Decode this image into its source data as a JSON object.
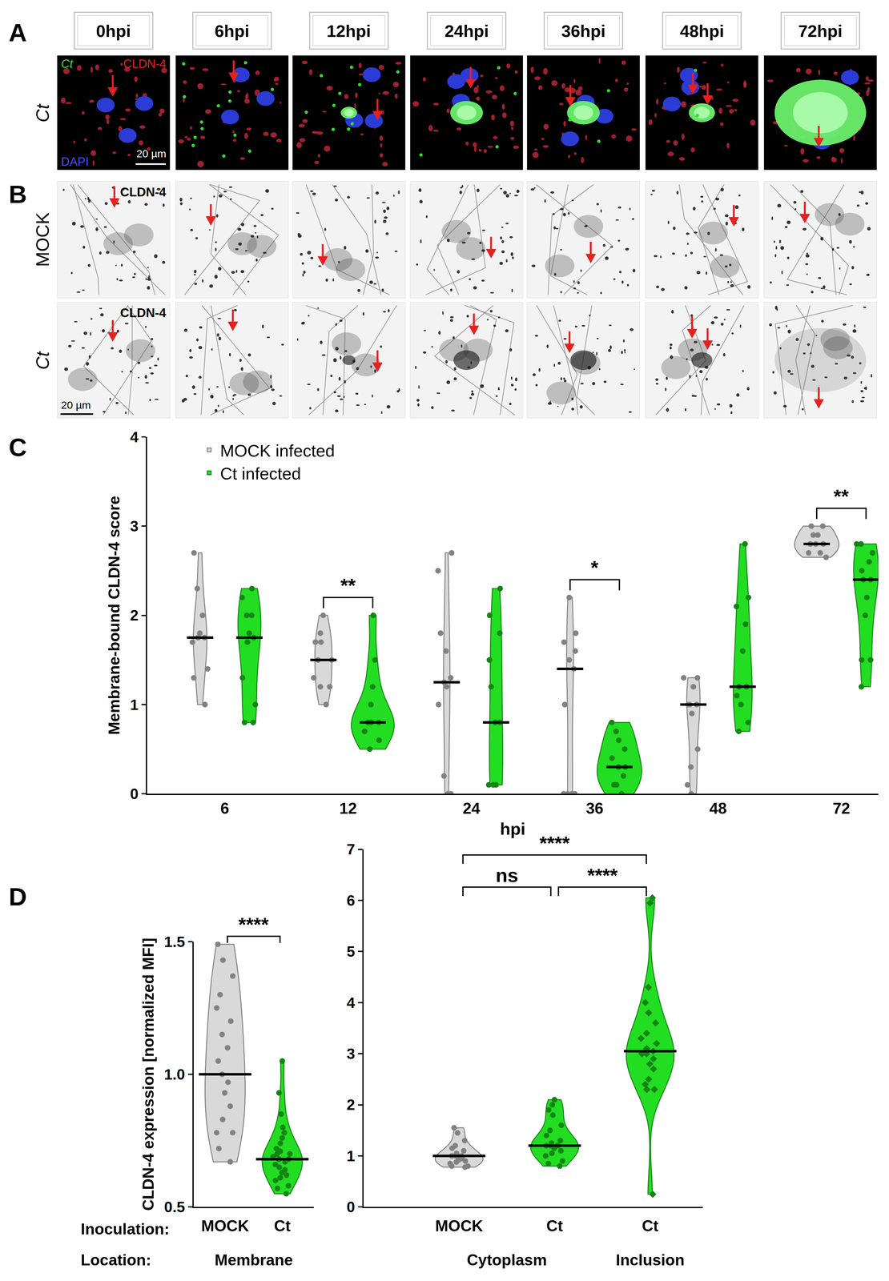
{
  "panel_labels": [
    "A",
    "B",
    "C",
    "D"
  ],
  "images": {
    "time_points": [
      "0hpi",
      "6hpi",
      "12hpi",
      "24hpi",
      "36hpi",
      "48hpi",
      "72hpi"
    ],
    "rows": [
      {
        "label": "Ct",
        "stains": [
          {
            "text": "Ct",
            "color": "#33dd33"
          },
          {
            "text": "CLDN-4",
            "color": "#e02020"
          },
          {
            "text": "DAPI",
            "color": "#4a4aff"
          }
        ],
        "scale_bar": "20 µm"
      },
      {
        "label": "MOCK",
        "stains": [
          {
            "text": "CLDN-4",
            "color": "#000000"
          }
        ]
      },
      {
        "label": "Ct",
        "stains": [
          {
            "text": "CLDN-4",
            "color": "#000000"
          }
        ],
        "scale_bar": "20 µm"
      }
    ]
  },
  "chart_data": [
    {
      "type": "violin",
      "ylabel": "Membrane-bound CLDN-4 score",
      "xlabel": "hpi",
      "categories": [
        "6",
        "12",
        "24",
        "36",
        "48",
        "72"
      ],
      "ylim": [
        0,
        4
      ],
      "yticks": [
        0,
        1,
        2,
        3,
        4
      ],
      "grid": false,
      "legend": "upper left",
      "series": [
        {
          "name": "MOCK infected",
          "color": "#d9d9d9",
          "marker": "circle",
          "values": [
            [
              2.7,
              2.3,
              2.0,
              1.8,
              1.75,
              1.75,
              1.7,
              1.4,
              1.3,
              1.0
            ],
            [
              2.0,
              1.8,
              1.7,
              1.7,
              1.5,
              1.5,
              1.3,
              1.2,
              1.2,
              1.0
            ],
            [
              2.7,
              2.5,
              1.8,
              1.6,
              1.3,
              1.25,
              1.2,
              1.0,
              0.2,
              0,
              0
            ],
            [
              2.2,
              1.8,
              1.7,
              1.6,
              1.5,
              1.4,
              1.0,
              0,
              0,
              0,
              0
            ],
            [
              1.3,
              1.3,
              1.2,
              1.0,
              1.0,
              1.0,
              0.9,
              0.5,
              0.3,
              0.1,
              0
            ],
            [
              3.0,
              3.0,
              2.9,
              2.9,
              2.8,
              2.8,
              2.8,
              2.7,
              2.7,
              2.65
            ]
          ],
          "medians": [
            1.75,
            1.5,
            1.25,
            1.4,
            1.0,
            2.8
          ]
        },
        {
          "name": "Ct infected",
          "color": "#22dd22",
          "marker": "circle",
          "values": [
            [
              2.3,
              2.2,
              2.0,
              2.0,
              1.8,
              1.75,
              1.7,
              1.3,
              1.0,
              0.8,
              0.8
            ],
            [
              2.0,
              1.5,
              1.2,
              1.0,
              0.8,
              0.8,
              0.8,
              0.8,
              0.7,
              0.6,
              0.5
            ],
            [
              2.3,
              2.0,
              1.8,
              1.5,
              1.2,
              0.8,
              0.8,
              0.1,
              0.1,
              0.1,
              0.1
            ],
            [
              0.8,
              0.7,
              0.6,
              0.5,
              0.4,
              0.3,
              0.3,
              0.2,
              0.1,
              0.1,
              0
            ],
            [
              2.8,
              2.2,
              2.1,
              1.9,
              1.6,
              1.2,
              1.2,
              1.1,
              1.0,
              0.8,
              0.7
            ],
            [
              2.8,
              2.8,
              2.7,
              2.6,
              2.5,
              2.4,
              2.4,
              2.2,
              2.0,
              1.5,
              1.5,
              1.2
            ]
          ],
          "medians": [
            1.75,
            0.8,
            0.8,
            0.3,
            1.2,
            2.4
          ]
        }
      ],
      "comparisons": [
        {
          "category": "12",
          "label": "**"
        },
        {
          "category": "36",
          "label": "*"
        },
        {
          "category": "72",
          "label": "**"
        }
      ]
    },
    {
      "type": "violin",
      "ylabel": "CLDN-4 expression [normalized MFI]",
      "row_labels": [
        "Inoculation:",
        "Location:"
      ],
      "ylim": [
        0.5,
        1.5
      ],
      "yticks": [
        0.5,
        {
          "value": 1,
          "label": "1.0"
        },
        1.5
      ],
      "grid": false,
      "groups": [
        {
          "inoculation": "MOCK",
          "location": "Membrane",
          "color": "#d9d9d9",
          "marker": "circle",
          "median": 1.0,
          "values": [
            1.49,
            1.43,
            1.37,
            1.3,
            1.25,
            1.2,
            1.15,
            1.1,
            1.05,
            1.0,
            0.97,
            0.93,
            0.88,
            0.83,
            0.78,
            0.78,
            0.72,
            0.67
          ]
        },
        {
          "inoculation": "Ct",
          "location": "Membrane",
          "color": "#22dd22",
          "marker": "circle",
          "median": 0.68,
          "values": [
            1.05,
            0.93,
            0.85,
            0.8,
            0.78,
            0.76,
            0.74,
            0.72,
            0.71,
            0.7,
            0.7,
            0.69,
            0.68,
            0.68,
            0.67,
            0.66,
            0.65,
            0.64,
            0.63,
            0.62,
            0.61,
            0.6,
            0.58,
            0.57,
            0.55
          ]
        }
      ],
      "comparisons": [
        {
          "groups": [
            0,
            1
          ],
          "label": "****"
        }
      ]
    },
    {
      "type": "violin",
      "ylim": [
        0,
        7
      ],
      "yticks": [
        0,
        1,
        2,
        3,
        4,
        5,
        6,
        7
      ],
      "grid": false,
      "groups": [
        {
          "inoculation": "MOCK",
          "location": "Cytoplasm",
          "color": "#d9d9d9",
          "marker": "circle",
          "median": 1.0,
          "values": [
            1.55,
            1.45,
            1.3,
            1.2,
            1.15,
            1.1,
            1.05,
            1.0,
            1.0,
            1.0,
            0.95,
            0.92,
            0.9,
            0.88,
            0.85,
            0.8,
            0.8,
            0.78
          ]
        },
        {
          "inoculation": "Ct",
          "location": "Cytoplasm",
          "color": "#22dd22",
          "marker": "circle",
          "median": 1.2,
          "values": [
            2.1,
            2.0,
            1.9,
            1.8,
            1.6,
            1.5,
            1.4,
            1.3,
            1.25,
            1.2,
            1.2,
            1.2,
            1.2,
            1.15,
            1.1,
            1.05,
            1.0,
            0.9,
            0.85,
            0.8
          ]
        },
        {
          "inoculation": "Ct",
          "location": "Inclusion",
          "color": "#22dd22",
          "marker": "diamond",
          "median": 3.05,
          "values": [
            6.05,
            5.95,
            4.3,
            4.0,
            3.8,
            3.6,
            3.4,
            3.3,
            3.2,
            3.1,
            3.05,
            3.0,
            3.0,
            2.9,
            2.8,
            2.7,
            2.5,
            2.4,
            2.3,
            2.3,
            0.25
          ]
        }
      ],
      "comparisons": [
        {
          "groups": [
            0,
            1
          ],
          "label": "ns"
        },
        {
          "groups": [
            1,
            2
          ],
          "label": "****"
        },
        {
          "groups": [
            0,
            2
          ],
          "label": "****"
        }
      ]
    }
  ]
}
